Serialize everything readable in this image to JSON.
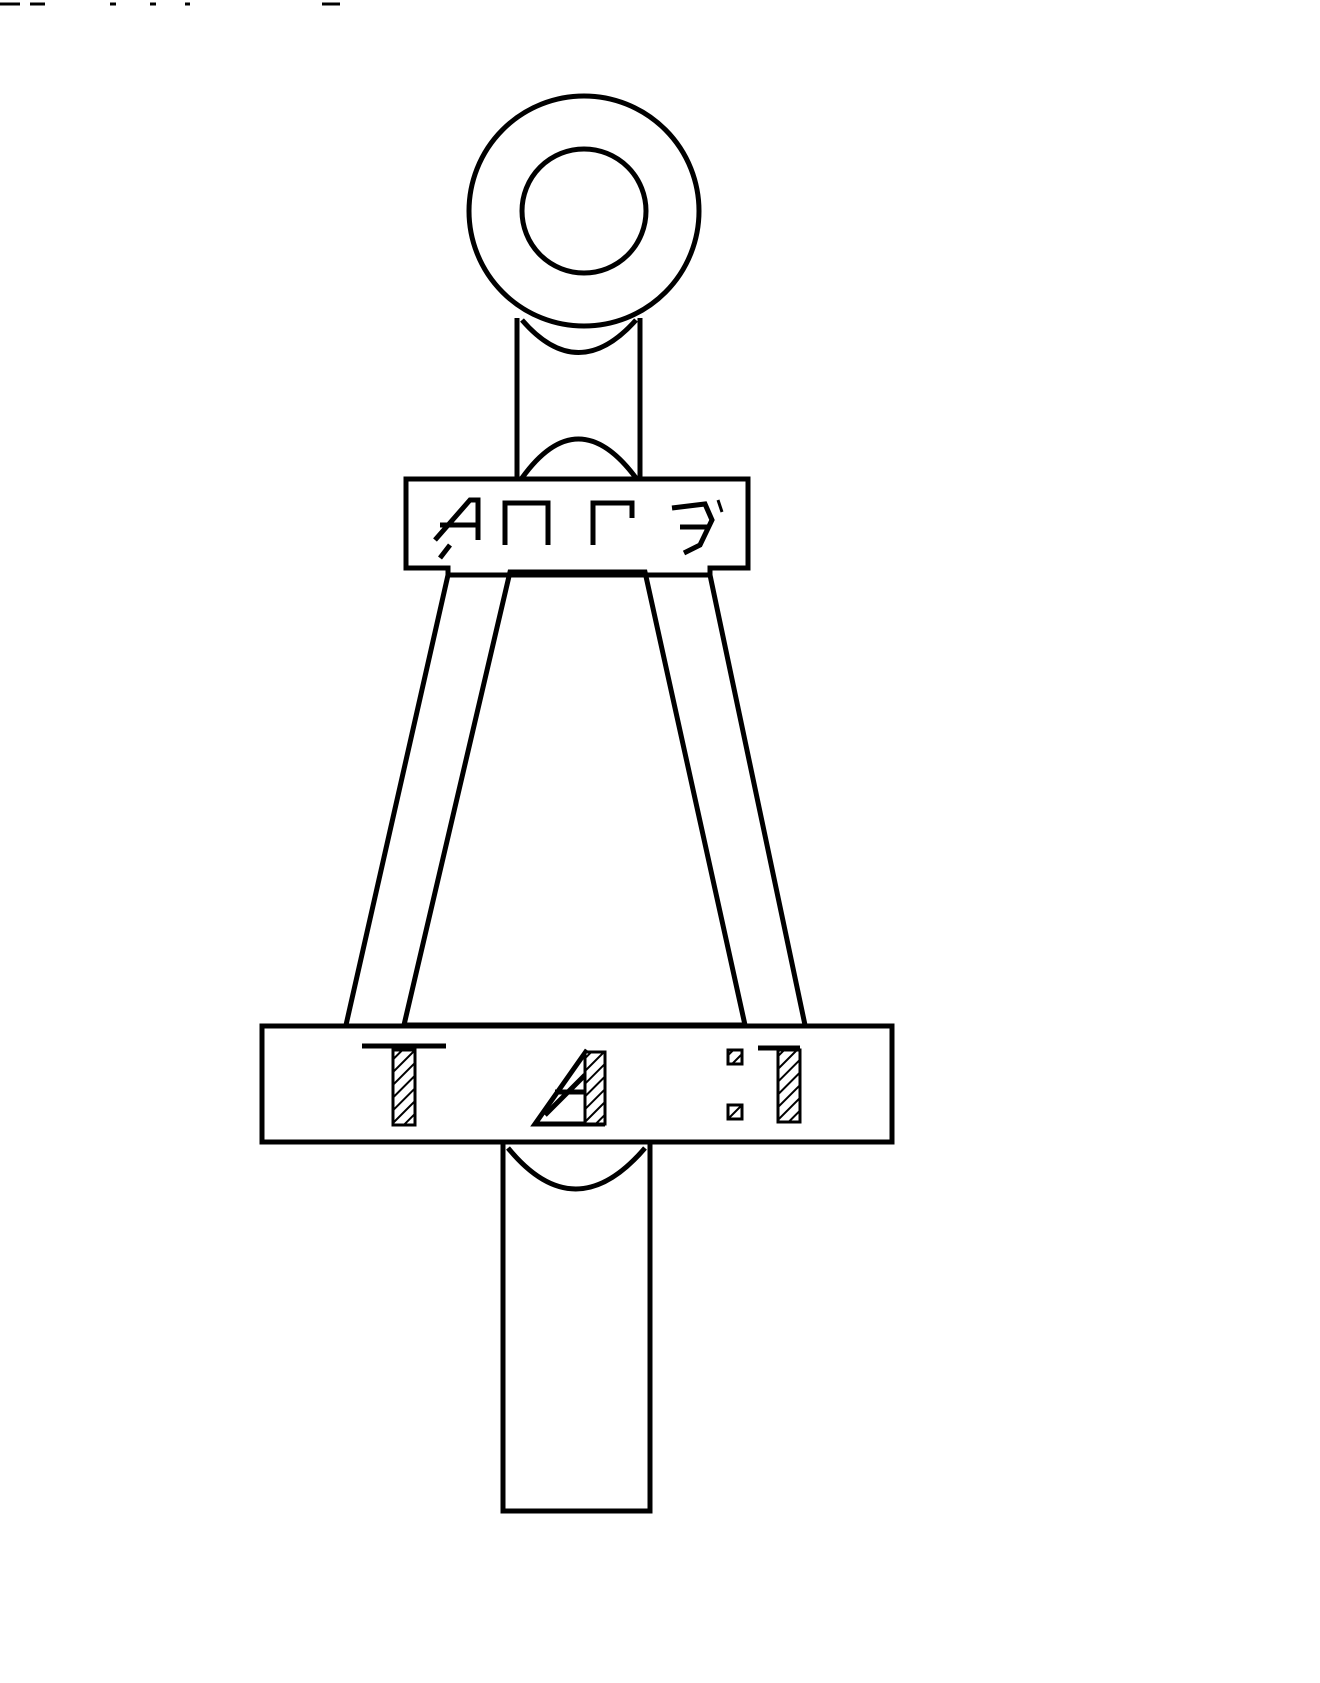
{
  "figure": {
    "description_type": "line-drawing",
    "ink_color": "#000000",
    "paper_color": "#ffffff"
  },
  "upper_plate": {
    "inscription": "ΑΠΓЭ"
  },
  "lower_plate": {
    "inscription_glyphs": [
      {
        "icon": "hatched-t-glyph-icon"
      },
      {
        "icon": "hatched-triangle-glyph-icon"
      },
      {
        "icon": "hatched-dotted-glyph-icon"
      }
    ]
  }
}
